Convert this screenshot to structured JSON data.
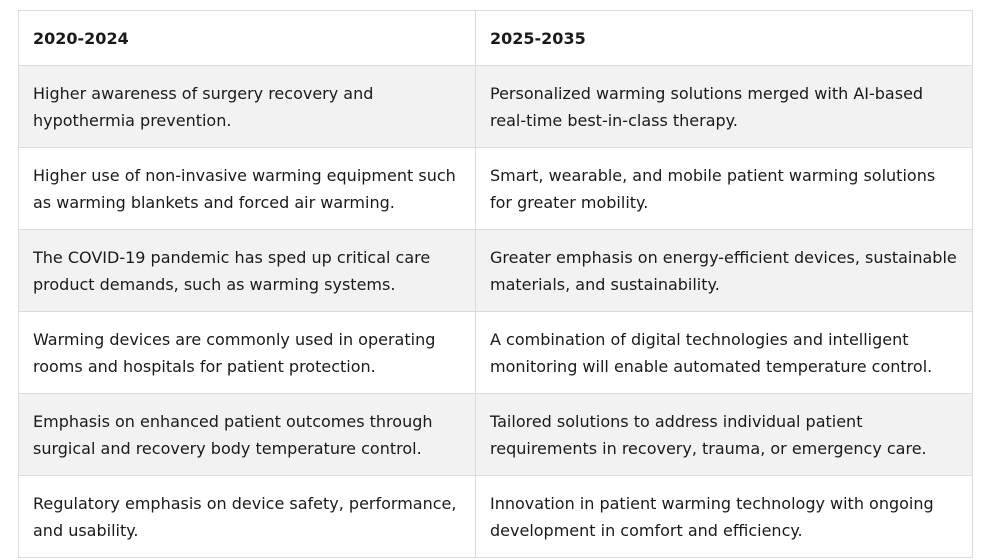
{
  "table": {
    "headers": [
      "2020-2024",
      "2025-2035"
    ],
    "rows": [
      [
        "Higher awareness of surgery recovery and hypothermia prevention.",
        "Personalized warming solutions merged with AI-based real-time best-in-class therapy."
      ],
      [
        "Higher use of non-invasive warming equipment such as warming blankets and forced air warming.",
        "Smart, wearable, and mobile patient warming solutions for greater mobility."
      ],
      [
        "The COVID-19 pandemic has sped up critical care product demands, such as warming systems.",
        "Greater emphasis on energy-efficient devices, sustainable materials, and sustainability."
      ],
      [
        "Warming devices are commonly used in operating rooms and hospitals for patient protection.",
        "A combination of digital technologies and intelligent monitoring will enable automated temperature control."
      ],
      [
        "Emphasis on enhanced patient outcomes through surgical and recovery body temperature control.",
        "Tailored solutions to address individual patient requirements in recovery, trauma, or emergency care."
      ],
      [
        "Regulatory emphasis on device safety, performance, and usability.",
        "Innovation in patient warming technology with ongoing development in comfort and efficiency."
      ]
    ]
  }
}
